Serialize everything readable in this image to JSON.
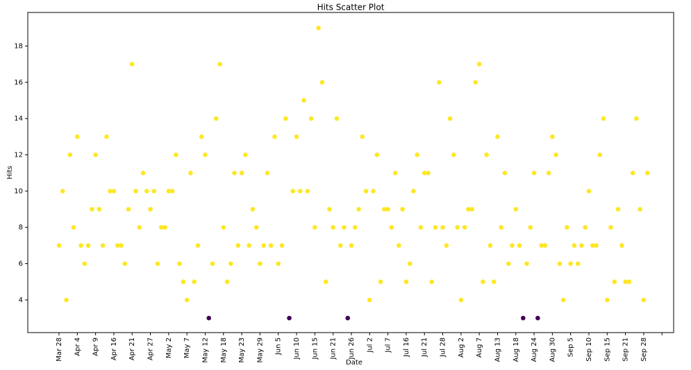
{
  "chart_data": {
    "type": "scatter",
    "title": "Hits Scatter Plot",
    "x_label": "Date",
    "y_label": "Hits",
    "categories": [
      "Mar 28",
      null,
      null,
      null,
      null,
      "Apr 4",
      null,
      null,
      null,
      null,
      "Apr 9",
      null,
      null,
      null,
      null,
      "Apr 16",
      null,
      null,
      null,
      null,
      "Apr 21",
      null,
      null,
      null,
      null,
      "Apr 27",
      null,
      null,
      null,
      null,
      "May 2",
      null,
      null,
      null,
      null,
      "May 7",
      null,
      null,
      null,
      null,
      "May 12",
      null,
      null,
      null,
      null,
      "May 18",
      null,
      null,
      null,
      null,
      "May 23",
      null,
      null,
      null,
      null,
      "May 29",
      null,
      null,
      null,
      null,
      "Jun 5",
      null,
      null,
      null,
      null,
      "Jun 10",
      null,
      null,
      null,
      null,
      "Jun 15",
      null,
      null,
      null,
      null,
      "Jun 21",
      null,
      null,
      null,
      null,
      "Jun 26",
      null,
      null,
      null,
      null,
      "Jul 2",
      null,
      null,
      null,
      null,
      "Jul 7",
      null,
      null,
      null,
      null,
      "Jul 16",
      null,
      null,
      null,
      null,
      "Jul 21",
      null,
      null,
      null,
      null,
      "Jul 28",
      null,
      null,
      null,
      null,
      "Aug 2",
      null,
      null,
      null,
      null,
      "Aug 7",
      null,
      null,
      null,
      null,
      "Aug 13",
      null,
      null,
      null,
      null,
      "Aug 18",
      null,
      null,
      null,
      null,
      "Aug 24",
      null,
      null,
      null,
      null,
      "Aug 30",
      null,
      null,
      null,
      null,
      "Sep 5",
      null,
      null,
      null,
      null,
      "Sep 10",
      null,
      null,
      null,
      null,
      "Sep 15",
      null,
      null,
      null,
      null,
      "Sep 21",
      null,
      null,
      null,
      null,
      "Sep 28",
      null,
      null,
      null,
      null,
      null
    ],
    "values": [
      7,
      10,
      4,
      12,
      8,
      13,
      7,
      6,
      7,
      9,
      12,
      9,
      7,
      13,
      10,
      10,
      7,
      7,
      6,
      9,
      17,
      10,
      8,
      11,
      10,
      9,
      10,
      6,
      8,
      8,
      10,
      10,
      12,
      6,
      5,
      4,
      11,
      5,
      7,
      13,
      12,
      3,
      6,
      14,
      17,
      8,
      5,
      6,
      11,
      7,
      11,
      12,
      7,
      9,
      8,
      6,
      7,
      11,
      7,
      13,
      6,
      7,
      14,
      3,
      10,
      13,
      10,
      15,
      10,
      14,
      8,
      19,
      16,
      5,
      9,
      8,
      14,
      7,
      8,
      3,
      7,
      8,
      9,
      13,
      10,
      4,
      10,
      12,
      5,
      9,
      9,
      8,
      11,
      7,
      9,
      5,
      6,
      10,
      12,
      8,
      11,
      11,
      5,
      8,
      16,
      8,
      7,
      14,
      12,
      8,
      4,
      8,
      9,
      9,
      16,
      17,
      5,
      12,
      7,
      5,
      13,
      8,
      11,
      6,
      7,
      9,
      7,
      3,
      6,
      8,
      11,
      3,
      7,
      7,
      11,
      13,
      12,
      6,
      4,
      8,
      6,
      7,
      6,
      7,
      8,
      10,
      7,
      7,
      12,
      14,
      4,
      8,
      5,
      9,
      7,
      5,
      5,
      11,
      14,
      9,
      4,
      11,
      null,
      null,
      null,
      null
    ],
    "color": "#fde725",
    "low_color": "#440154",
    "ylim": [
      2.2,
      19.85
    ],
    "yticks": [
      4,
      6,
      8,
      10,
      12,
      14,
      16,
      18
    ]
  }
}
